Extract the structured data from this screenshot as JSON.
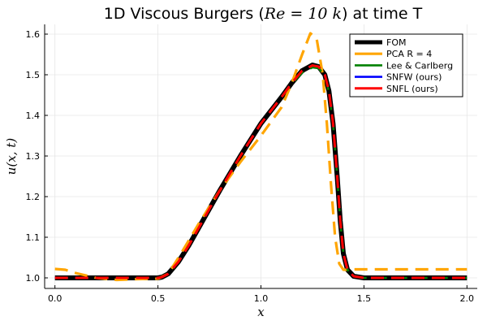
{
  "chart_data": {
    "type": "line",
    "title": "1D Viscous Burgers (Re = 10k) at time T",
    "title_parts": {
      "prefix": "1D Viscous Burgers (",
      "math": "Re = 10 k",
      "suffix": ") at time T"
    },
    "xlabel": "x",
    "ylabel": "u(x, t)",
    "xlim": [
      -0.05,
      2.05
    ],
    "ylim": [
      0.974,
      1.624
    ],
    "xticks": [
      0.0,
      0.5,
      1.0,
      1.5,
      2.0
    ],
    "xtick_labels": [
      "0.0",
      "0.5",
      "1.0",
      "1.5",
      "2.0"
    ],
    "yticks": [
      1.0,
      1.1,
      1.2,
      1.3,
      1.4,
      1.5,
      1.6
    ],
    "ytick_labels": [
      "1.0",
      "1.1",
      "1.2",
      "1.3",
      "1.4",
      "1.5",
      "1.6"
    ],
    "grid": true,
    "legend_position": "top-right",
    "series": [
      {
        "name": "FOM",
        "color": "#000000",
        "style": "solid",
        "x": [
          0.0,
          0.5,
          0.52,
          0.55,
          0.6,
          0.65,
          0.7,
          0.8,
          0.9,
          1.0,
          1.1,
          1.15,
          1.2,
          1.25,
          1.28,
          1.31,
          1.33,
          1.35,
          1.37,
          1.385,
          1.4,
          1.42,
          1.45,
          1.5,
          2.0
        ],
        "y": [
          1.0,
          1.0,
          1.002,
          1.01,
          1.04,
          1.08,
          1.125,
          1.215,
          1.3,
          1.38,
          1.445,
          1.48,
          1.51,
          1.524,
          1.52,
          1.5,
          1.46,
          1.38,
          1.25,
          1.14,
          1.06,
          1.02,
          1.004,
          1.0,
          1.0
        ]
      },
      {
        "name": "PCA R = 4",
        "color": "#ffa500",
        "style": "dashed",
        "x": [
          0.0,
          0.05,
          0.1,
          0.2,
          0.3,
          0.4,
          0.5,
          0.55,
          0.6,
          0.7,
          0.8,
          0.9,
          1.0,
          1.1,
          1.15,
          1.2,
          1.24,
          1.27,
          1.3,
          1.32,
          1.34,
          1.36,
          1.38,
          1.4,
          1.42,
          1.45,
          1.5,
          2.0
        ],
        "y": [
          1.022,
          1.02,
          1.012,
          1.0,
          0.995,
          0.997,
          0.998,
          1.01,
          1.05,
          1.135,
          1.215,
          1.285,
          1.35,
          1.42,
          1.48,
          1.55,
          1.602,
          1.59,
          1.5,
          1.38,
          1.23,
          1.1,
          1.035,
          1.02,
          1.02,
          1.021,
          1.021,
          1.021
        ]
      },
      {
        "name": "Lee & Carlberg",
        "color": "#008000",
        "style": "dashed",
        "x": [
          0.0,
          0.5,
          0.52,
          0.55,
          0.6,
          0.65,
          0.7,
          0.8,
          0.9,
          1.0,
          1.1,
          1.15,
          1.2,
          1.25,
          1.28,
          1.31,
          1.33,
          1.35,
          1.37,
          1.385,
          1.4,
          1.42,
          1.45,
          1.5,
          2.0
        ],
        "y": [
          1.0,
          1.0,
          1.002,
          1.01,
          1.04,
          1.08,
          1.125,
          1.215,
          1.3,
          1.38,
          1.445,
          1.478,
          1.505,
          1.518,
          1.516,
          1.498,
          1.458,
          1.38,
          1.25,
          1.14,
          1.06,
          1.02,
          1.004,
          1.0,
          1.0
        ]
      },
      {
        "name": "SNFW (ours)",
        "color": "#0000ff",
        "style": "dashed",
        "x": [
          0.0,
          0.5,
          0.52,
          0.55,
          0.6,
          0.65,
          0.7,
          0.8,
          0.9,
          1.0,
          1.1,
          1.15,
          1.2,
          1.25,
          1.28,
          1.31,
          1.33,
          1.35,
          1.37,
          1.385,
          1.4,
          1.42,
          1.45,
          1.5,
          2.0
        ],
        "y": [
          1.0,
          1.0,
          1.002,
          1.01,
          1.04,
          1.08,
          1.125,
          1.215,
          1.3,
          1.38,
          1.445,
          1.48,
          1.51,
          1.523,
          1.52,
          1.5,
          1.46,
          1.38,
          1.25,
          1.14,
          1.06,
          1.02,
          1.004,
          1.0,
          1.0
        ]
      },
      {
        "name": "SNFL (ours)",
        "color": "#ff0000",
        "style": "dashed",
        "x": [
          0.0,
          0.5,
          0.52,
          0.55,
          0.6,
          0.65,
          0.7,
          0.8,
          0.9,
          1.0,
          1.1,
          1.15,
          1.2,
          1.25,
          1.28,
          1.31,
          1.33,
          1.35,
          1.37,
          1.385,
          1.4,
          1.42,
          1.45,
          1.5,
          2.0
        ],
        "y": [
          1.0,
          1.0,
          1.002,
          1.01,
          1.04,
          1.08,
          1.125,
          1.215,
          1.3,
          1.38,
          1.445,
          1.48,
          1.51,
          1.523,
          1.52,
          1.5,
          1.46,
          1.38,
          1.25,
          1.14,
          1.06,
          1.02,
          1.004,
          1.0,
          1.0
        ]
      }
    ]
  }
}
